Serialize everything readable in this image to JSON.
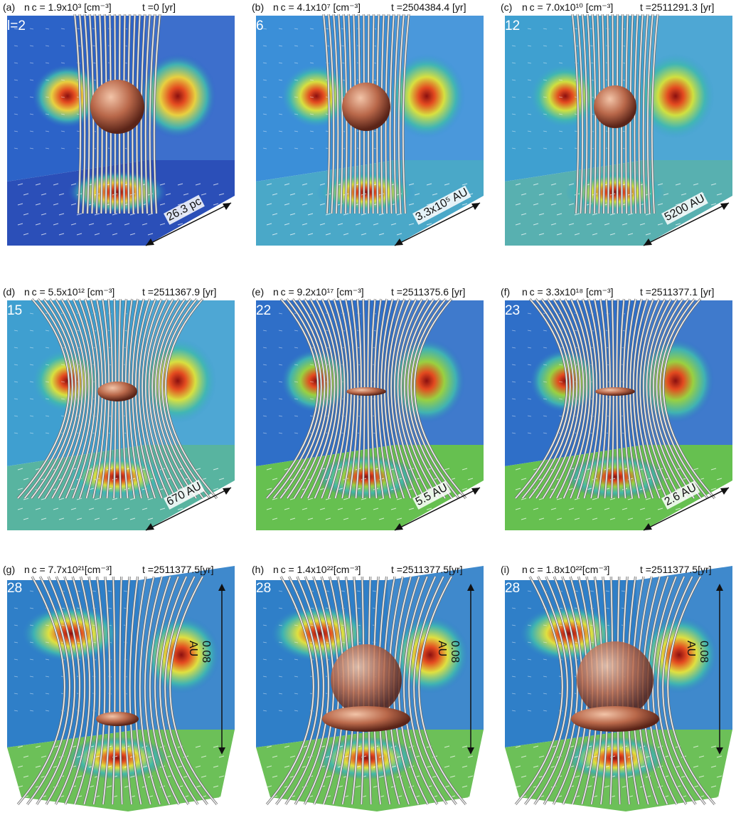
{
  "panels": [
    {
      "tag": "(a)",
      "nc": "n c = 1.9x10³ [cm⁻³]",
      "t": "t =0 [yr]",
      "level": "l=2",
      "scale": "26.3 pc",
      "orientation": "diag",
      "colors": {
        "wall": "#2c63c8",
        "floor": "#2b4fb8",
        "blob": "#e8d040"
      },
      "hasSphere": true,
      "sphereR": 38,
      "disk": false
    },
    {
      "tag": "(b)",
      "nc": "n c = 4.1x10⁷ [cm⁻³]",
      "t": "t =2504384.4 [yr]",
      "level": "6",
      "scale": "3.3x10⁵ AU",
      "orientation": "diag",
      "colors": {
        "wall": "#3b8fd8",
        "floor": "#4aa8c8",
        "blob": "#d8e040"
      },
      "hasSphere": true,
      "sphereR": 34,
      "disk": false
    },
    {
      "tag": "(c)",
      "nc": "n c = 7.0x10¹⁰ [cm⁻³]",
      "t": "t =2511291.3 [yr]",
      "level": "12",
      "scale": "5200 AU",
      "orientation": "diag",
      "colors": {
        "wall": "#3fa0d0",
        "floor": "#58b0b0",
        "blob": "#d0e040"
      },
      "hasSphere": true,
      "sphereR": 30,
      "disk": false
    },
    {
      "tag": "(d)",
      "nc": "n c = 5.5x10¹² [cm⁻³]",
      "t": "t =2511367.9 [yr]",
      "level": "15",
      "scale": "670 AU",
      "orientation": "diag",
      "colors": {
        "wall": "#3f9fd0",
        "floor": "#58b4a0",
        "blob": "#d8e040"
      },
      "hasSphere": false,
      "sphereR": 0,
      "disk": true
    },
    {
      "tag": "(e)",
      "nc": "n c = 9.2x10¹⁷ [cm⁻³]",
      "t": "t =2511375.6 [yr]",
      "level": "22",
      "scale": "5.5 AU",
      "orientation": "diag",
      "colors": {
        "wall": "#2f6fc8",
        "floor": "#66c050",
        "blob": "#9ad040"
      },
      "hasSphere": false,
      "sphereR": 0,
      "disk": true
    },
    {
      "tag": "(f)",
      "nc": "n c = 3.3x10¹⁸ [cm⁻³]",
      "t": "t =2511377.1 [yr]",
      "level": "23",
      "scale": "2.6 AU",
      "orientation": "diag",
      "colors": {
        "wall": "#2f6fc8",
        "floor": "#66c050",
        "blob": "#9ad040"
      },
      "hasSphere": false,
      "sphereR": 0,
      "disk": true
    },
    {
      "tag": "(g)",
      "nc": "n c = 7.7x10²¹[cm⁻³]",
      "t": "t =2511377.5[yr]",
      "level": "28",
      "scale": "0.08 AU",
      "orientation": "vert",
      "colors": {
        "wall": "#2f7fc8",
        "floor": "#6cc058",
        "blob": "#e0e040"
      },
      "hasSphere": false,
      "sphereR": 0,
      "disk": true
    },
    {
      "tag": "(h)",
      "nc": "n c = 1.4x10²²[cm⁻³]",
      "t": "t =2511377.5[yr]",
      "level": "28",
      "scale": "0.08 AU",
      "orientation": "vert",
      "colors": {
        "wall": "#2f7fc8",
        "floor": "#6cc058",
        "blob": "#e0e040"
      },
      "hasSphere": true,
      "sphereR": 50,
      "disk": true
    },
    {
      "tag": "(i)",
      "nc": "n c = 1.8x10²²[cm⁻³]",
      "t": "t =2511377.5[yr]",
      "level": "28",
      "scale": "0.08 AU",
      "orientation": "vert",
      "colors": {
        "wall": "#2f7fc8",
        "floor": "#6cc058",
        "blob": "#e0e040"
      },
      "hasSphere": true,
      "sphereR": 54,
      "disk": true
    }
  ]
}
